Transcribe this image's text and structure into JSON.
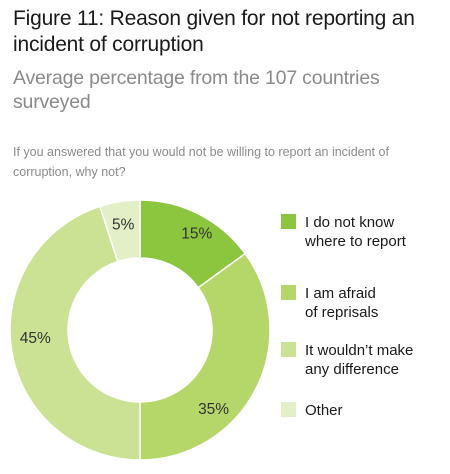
{
  "title": "Figure 11: Reason given for not reporting an incident of corruption",
  "subtitle": "Average percentage from the 107 countries surveyed",
  "question": "If you answered that you would not be willing to report an incident of corruption, why not?",
  "chart_data": {
    "type": "pie",
    "variant": "donut",
    "title": "",
    "legend_position": "right",
    "slices": [
      {
        "name": "I do not know where to report",
        "legend_lines": [
          "I do not know",
          "where to report"
        ],
        "value": 15,
        "label": "15%",
        "color": "#8cc63f"
      },
      {
        "name": "I am afraid of reprisals",
        "legend_lines": [
          "I am afraid",
          "of reprisals"
        ],
        "value": 35,
        "label": "35%",
        "color": "#b5d769"
      },
      {
        "name": "It wouldn't make any difference",
        "legend_lines": [
          "It wouldn’t make",
          "any difference"
        ],
        "value": 45,
        "label": "45%",
        "color": "#cbe294"
      },
      {
        "name": "Other",
        "legend_lines": [
          "Other"
        ],
        "value": 5,
        "label": "5%",
        "color": "#e3efc6"
      }
    ]
  }
}
